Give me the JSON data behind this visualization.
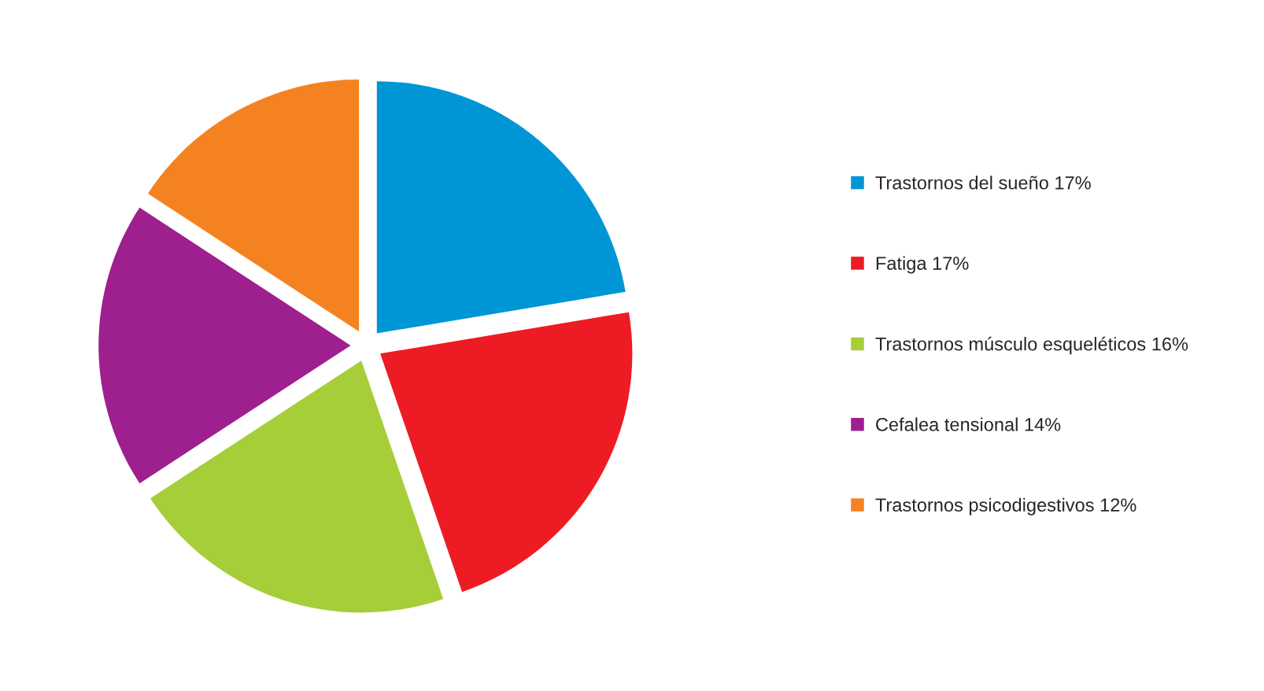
{
  "chart_data": {
    "type": "pie",
    "categories": [
      "Trastornos del sueño 17%",
      "Fatiga 17%",
      "Trastornos músculo esqueléticos 16%",
      "Cefalea tensional 14%",
      "Trastornos psicodigestivos 12%"
    ],
    "values": [
      17,
      17,
      16,
      14,
      12
    ],
    "colors": [
      "#0096d6",
      "#ed1c24",
      "#a6ce39",
      "#9e1f8e",
      "#f58220"
    ],
    "legend": "right"
  }
}
